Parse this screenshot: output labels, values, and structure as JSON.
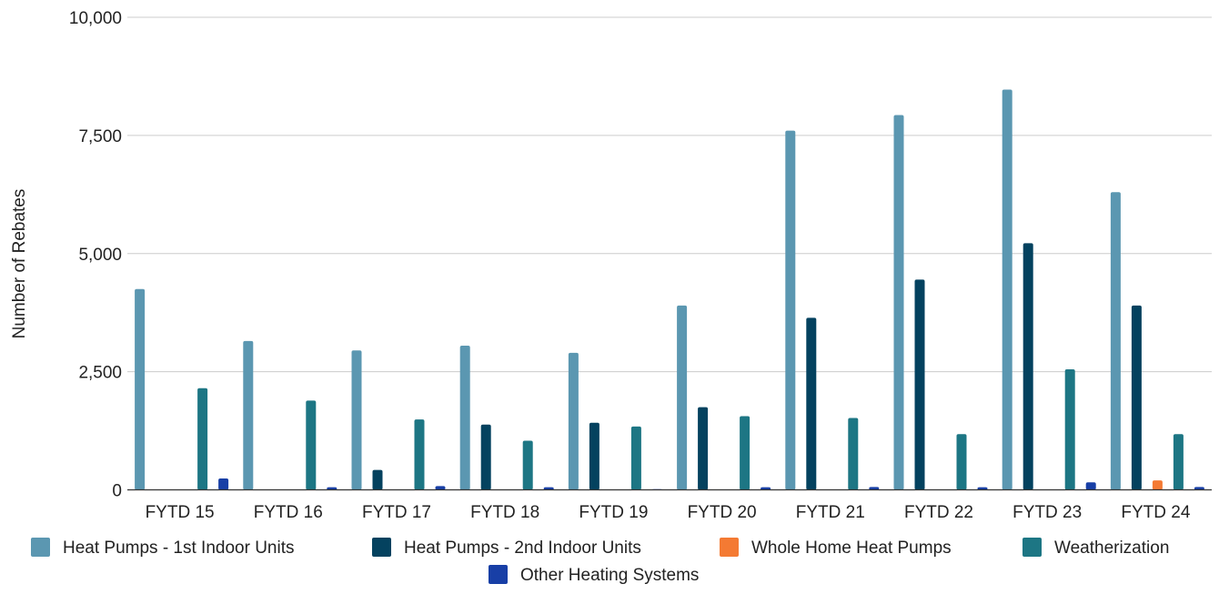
{
  "chart_data": {
    "type": "bar",
    "ylabel": "Number of Rebates",
    "ylim": [
      0,
      10000
    ],
    "yticks": [
      0,
      2500,
      5000,
      7500,
      10000
    ],
    "ytick_labels": [
      "0",
      "2,500",
      "5,000",
      "7,500",
      "10,000"
    ],
    "grid": true,
    "legend_position": "bottom",
    "categories": [
      "FYTD 15",
      "FYTD 16",
      "FYTD 17",
      "FYTD 18",
      "FYTD 19",
      "FYTD 20",
      "FYTD 21",
      "FYTD 22",
      "FYTD 23",
      "FYTD 24"
    ],
    "series": [
      {
        "name": "Heat Pumps - 1st Indoor Units",
        "color": "#5b97b1",
        "values": [
          4250,
          3150,
          2950,
          3050,
          2900,
          3900,
          7600,
          7930,
          8470,
          6300
        ]
      },
      {
        "name": "Heat Pumps - 2nd Indoor Units",
        "color": "#04425f",
        "values": [
          0,
          0,
          420,
          1380,
          1420,
          1750,
          3640,
          4450,
          5220,
          3900
        ]
      },
      {
        "name": "Whole Home Heat Pumps",
        "color": "#f47a33",
        "values": [
          0,
          0,
          0,
          0,
          0,
          0,
          0,
          0,
          0,
          200
        ]
      },
      {
        "name": "Weatherization",
        "color": "#1d7684",
        "values": [
          2150,
          1890,
          1490,
          1040,
          1340,
          1560,
          1520,
          1180,
          2550,
          1180
        ]
      },
      {
        "name": "Other Heating Systems",
        "color": "#183fa6",
        "values": [
          240,
          55,
          80,
          55,
          15,
          55,
          60,
          55,
          160,
          60
        ]
      }
    ]
  }
}
